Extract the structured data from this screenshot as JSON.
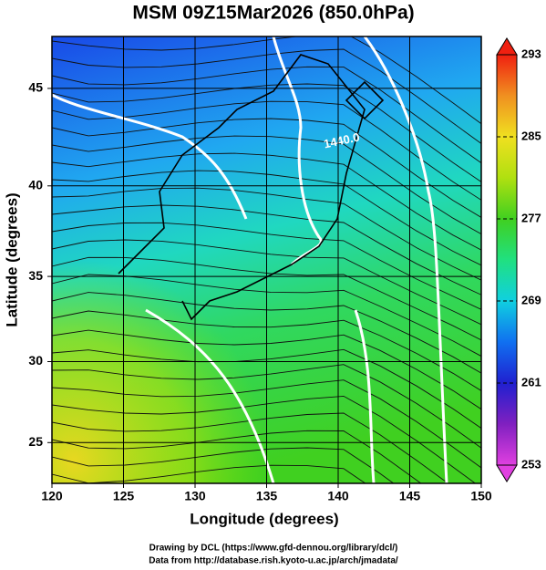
{
  "chart_data": {
    "type": "map",
    "title": "MSM 09Z15Mar2026 (850.0hPa)",
    "xlabel": "Longitude (degrees)",
    "ylabel": "Latitude  (degrees)",
    "xlim": [
      120,
      150
    ],
    "xticks": [
      120,
      125,
      130,
      135,
      140,
      145,
      150
    ],
    "ylim": [
      22.4,
      47.5
    ],
    "yticks": [
      25,
      30,
      35,
      40,
      45
    ],
    "projection": "mercator",
    "grid": true,
    "contour_labels": [
      "1440.0"
    ],
    "colorbar": {
      "lim": [
        253,
        293
      ],
      "ticks": [
        253,
        261,
        269,
        277,
        285,
        293
      ],
      "colors": [
        "#e040e0",
        "#8020c0",
        "#2020d0",
        "#1070f0",
        "#10d0e0",
        "#20e080",
        "#40d020",
        "#b0e010",
        "#f0e020",
        "#f09020",
        "#f02010"
      ]
    },
    "credits": [
      "Drawing by DCL (https://www.gfd-dennou.org/library/dcl/)",
      "Data from http://database.rish.kyoto-u.ac.jp/arch/jmadata/"
    ]
  }
}
